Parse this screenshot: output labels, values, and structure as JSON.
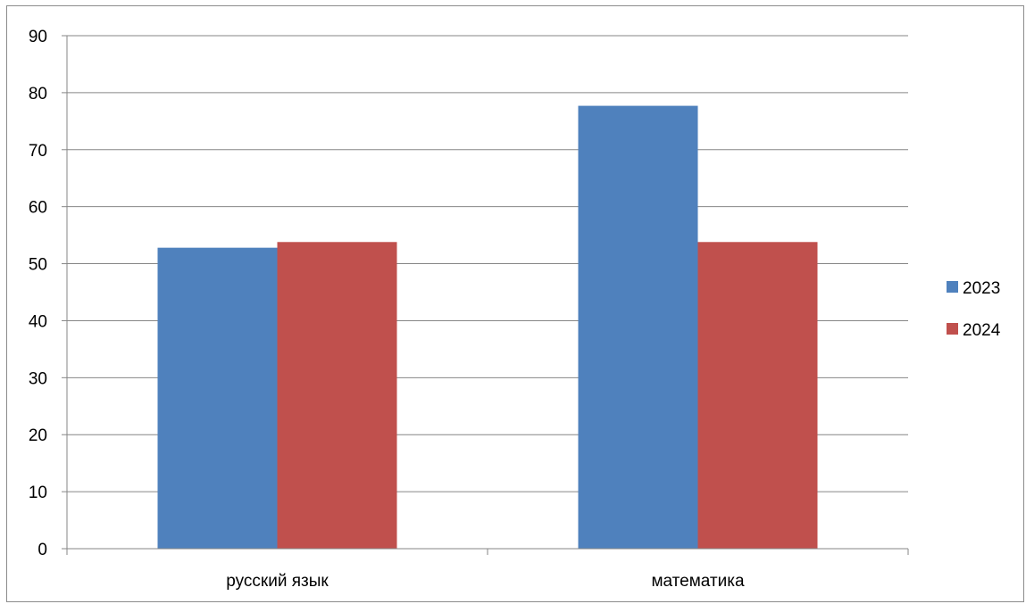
{
  "chart_data": {
    "type": "bar",
    "title": "",
    "xlabel": "",
    "ylabel": "",
    "categories": [
      "русский язык",
      "математика"
    ],
    "series": [
      {
        "name": "2023",
        "values": [
          52.8,
          77.7
        ],
        "color": "#4f81bd"
      },
      {
        "name": "2024",
        "values": [
          53.8,
          53.8
        ],
        "color": "#c0504d"
      }
    ],
    "ylim": [
      0,
      90
    ],
    "yticks": [
      0,
      10,
      20,
      30,
      40,
      50,
      60,
      70,
      80,
      90
    ],
    "grid": true,
    "legend": "right"
  }
}
